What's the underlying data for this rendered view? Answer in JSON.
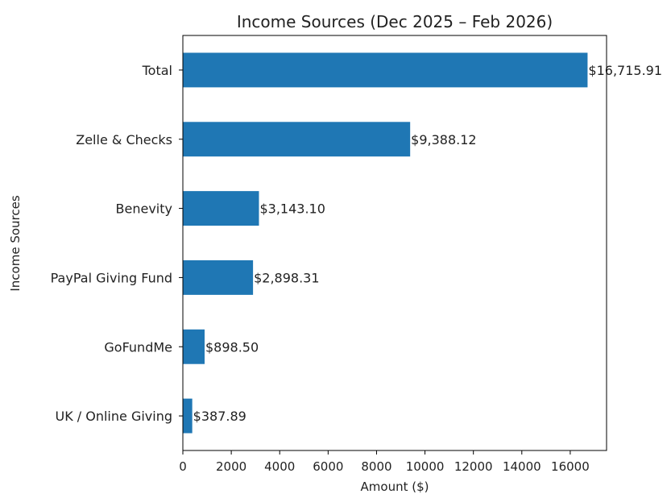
{
  "chart_data": {
    "type": "bar",
    "orientation": "horizontal",
    "title": "Income Sources (Dec 2025 – Feb 2026)",
    "xlabel": "Amount ($)",
    "ylabel": "Income Sources",
    "xlim": [
      0,
      17500
    ],
    "xticks": [
      0,
      2000,
      4000,
      6000,
      8000,
      10000,
      12000,
      14000,
      16000
    ],
    "grid": false,
    "bar_color": "#1f77b4",
    "categories": [
      "Total",
      "Zelle & Checks",
      "Benevity",
      "PayPal Giving Fund",
      "GoFundMe",
      "UK / Online Giving"
    ],
    "values": [
      16715.91,
      9388.12,
      3143.1,
      2898.31,
      898.5,
      387.89
    ],
    "data_labels": [
      "$16,715.91",
      "$9,388.12",
      "$3,143.10",
      "$2,898.31",
      "$898.50",
      "$387.89"
    ]
  }
}
